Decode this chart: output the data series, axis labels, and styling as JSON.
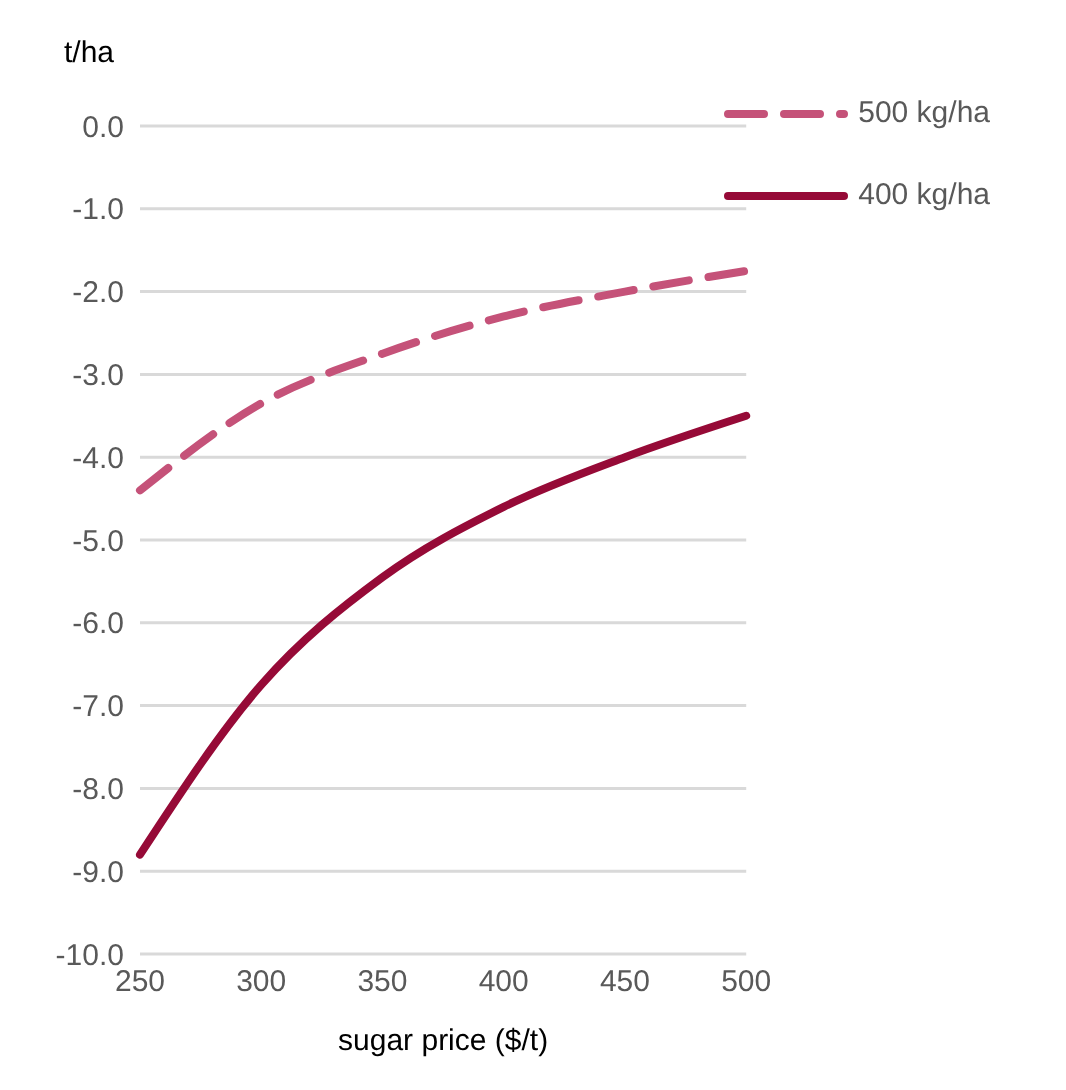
{
  "chart_data": {
    "type": "line",
    "xlabel": "sugar price ($/t)",
    "ylabel": "t/ha",
    "categories": [
      "250",
      "300",
      "350",
      "400",
      "450",
      "500"
    ],
    "series": [
      {
        "name": "500 kg/ha",
        "color": "#c55279",
        "line_style": "dashed",
        "values": [
          -4.4,
          -3.35,
          -2.75,
          -2.3,
          -2.0,
          -1.75
        ]
      },
      {
        "name": "400 kg/ha",
        "color": "#960a37",
        "line_style": "solid",
        "values": [
          -8.8,
          -6.75,
          -5.45,
          -4.6,
          -4.0,
          -3.5
        ]
      }
    ],
    "ylim": [
      -10,
      0
    ],
    "yticks": [
      {
        "value": 0,
        "label": "0.0"
      },
      {
        "value": -1,
        "label": "-1.0"
      },
      {
        "value": -2,
        "label": "-2.0"
      },
      {
        "value": -3,
        "label": "-3.0"
      },
      {
        "value": -4,
        "label": "-4.0"
      },
      {
        "value": -5,
        "label": "-5.0"
      },
      {
        "value": -6,
        "label": "-6.0"
      },
      {
        "value": -7,
        "label": "-7.0"
      },
      {
        "value": -8,
        "label": "-8.0"
      },
      {
        "value": -9,
        "label": "-9.0"
      },
      {
        "value": -10,
        "label": "-10.0"
      }
    ],
    "grid": "y",
    "legend": "top right",
    "marker": "none"
  }
}
